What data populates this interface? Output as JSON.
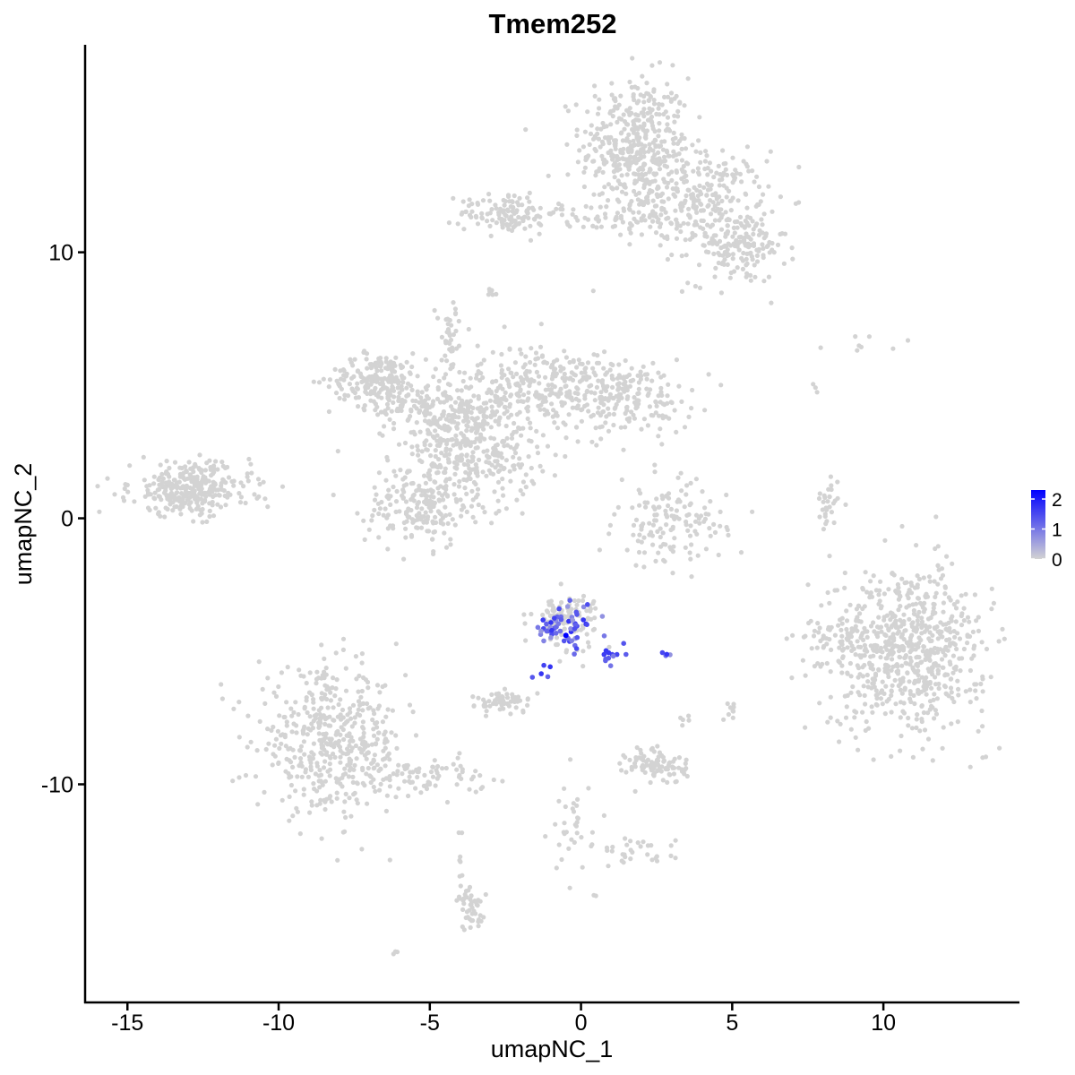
{
  "chart_data": {
    "type": "scatter",
    "title": "Tmem252",
    "xlabel": "umapNC_1",
    "ylabel": "umapNC_2",
    "xlim": [
      -16.4,
      14.5
    ],
    "ylim": [
      -18.2,
      17.8
    ],
    "x_ticks": [
      -15,
      -10,
      -5,
      0,
      5,
      10
    ],
    "x_tick_labels": [
      "-15",
      "-10",
      "-5",
      "0",
      "5",
      "10"
    ],
    "y_ticks": [
      -10,
      0,
      10
    ],
    "y_tick_labels": [
      "-10",
      "0",
      "10"
    ],
    "grid": false,
    "point_color_low": "#d3d3d3",
    "point_color_high": "#0000ff",
    "legend": {
      "position": "right",
      "type": "colorbar",
      "min": 0,
      "max": 2.3,
      "tick_values": [
        0,
        1,
        2
      ],
      "tick_labels": [
        "0",
        "1",
        "2"
      ]
    },
    "clusters": [
      {
        "center": [
          1.8,
          14.0
        ],
        "spread": [
          0.9,
          1.3
        ],
        "count": 420,
        "expr": 0
      },
      {
        "center": [
          3.9,
          12.0
        ],
        "spread": [
          1.1,
          0.9
        ],
        "count": 260,
        "expr": 0
      },
      {
        "center": [
          5.2,
          10.2
        ],
        "spread": [
          0.8,
          0.7
        ],
        "count": 160,
        "expr": 0
      },
      {
        "center": [
          -2.4,
          11.5
        ],
        "spread": [
          0.8,
          0.4
        ],
        "count": 120,
        "expr": 0
      },
      {
        "center": [
          0.8,
          11.2
        ],
        "spread": [
          1.3,
          0.3
        ],
        "count": 60,
        "expr": 0
      },
      {
        "center": [
          -3.0,
          8.5
        ],
        "spread": [
          0.15,
          0.15
        ],
        "count": 6,
        "expr": 0
      },
      {
        "center": [
          -6.7,
          5.2
        ],
        "spread": [
          0.8,
          0.5
        ],
        "count": 200,
        "expr": 0
      },
      {
        "center": [
          -4.5,
          4.0
        ],
        "spread": [
          1.1,
          0.7
        ],
        "count": 260,
        "expr": 0
      },
      {
        "center": [
          -3.4,
          2.4
        ],
        "spread": [
          1.0,
          0.9
        ],
        "count": 260,
        "expr": 0
      },
      {
        "center": [
          -1.4,
          5.0
        ],
        "spread": [
          1.0,
          0.8
        ],
        "count": 220,
        "expr": 0
      },
      {
        "center": [
          1.3,
          4.6
        ],
        "spread": [
          1.2,
          0.7
        ],
        "count": 220,
        "expr": 0
      },
      {
        "center": [
          -5.3,
          0.5
        ],
        "spread": [
          0.9,
          0.8
        ],
        "count": 200,
        "expr": 0
      },
      {
        "center": [
          -4.3,
          6.7
        ],
        "spread": [
          0.25,
          0.7
        ],
        "count": 40,
        "expr": 0
      },
      {
        "center": [
          -12.9,
          1.1
        ],
        "spread": [
          1.0,
          0.5
        ],
        "count": 320,
        "expr": 0
      },
      {
        "center": [
          -8.3,
          -8.4
        ],
        "spread": [
          1.2,
          1.3
        ],
        "count": 460,
        "expr": 0
      },
      {
        "center": [
          -5.2,
          -9.7
        ],
        "spread": [
          1.0,
          0.35
        ],
        "count": 90,
        "expr": 0
      },
      {
        "center": [
          -0.5,
          -3.8
        ],
        "spread": [
          0.55,
          0.5
        ],
        "count": 110,
        "expr": 0
      },
      {
        "center": [
          -0.5,
          -4.1
        ],
        "spread": [
          0.55,
          0.4
        ],
        "count": 55,
        "expr": 1
      },
      {
        "center": [
          0.9,
          -5.0
        ],
        "spread": [
          0.3,
          0.3
        ],
        "count": 12,
        "expr": 1
      },
      {
        "center": [
          -1.3,
          -5.6
        ],
        "spread": [
          0.15,
          0.3
        ],
        "count": 5,
        "expr": 1
      },
      {
        "center": [
          2.8,
          -5.1
        ],
        "spread": [
          0.1,
          0.05
        ],
        "count": 4,
        "expr": 1
      },
      {
        "center": [
          -2.5,
          -6.9
        ],
        "spread": [
          0.5,
          0.2
        ],
        "count": 60,
        "expr": 0
      },
      {
        "center": [
          2.5,
          -9.3
        ],
        "spread": [
          0.5,
          0.35
        ],
        "count": 90,
        "expr": 0
      },
      {
        "center": [
          3.4,
          -7.6
        ],
        "spread": [
          0.1,
          0.1
        ],
        "count": 5,
        "expr": 0
      },
      {
        "center": [
          5.0,
          -7.2
        ],
        "spread": [
          0.08,
          0.25
        ],
        "count": 10,
        "expr": 0
      },
      {
        "center": [
          -0.3,
          -11.5
        ],
        "spread": [
          0.35,
          0.9
        ],
        "count": 35,
        "expr": 0
      },
      {
        "center": [
          1.9,
          -12.6
        ],
        "spread": [
          0.6,
          0.3
        ],
        "count": 30,
        "expr": 0
      },
      {
        "center": [
          -3.6,
          -14.7
        ],
        "spread": [
          0.25,
          0.4
        ],
        "count": 45,
        "expr": 0
      },
      {
        "center": [
          -4.0,
          -13.6
        ],
        "spread": [
          0.12,
          0.4
        ],
        "count": 8,
        "expr": 0
      },
      {
        "center": [
          -6.1,
          -16.3
        ],
        "spread": [
          0.1,
          0.05
        ],
        "count": 3,
        "expr": 0
      },
      {
        "center": [
          0.5,
          -14.2
        ],
        "spread": [
          0.05,
          0.05
        ],
        "count": 2,
        "expr": 0
      },
      {
        "center": [
          -4.0,
          -11.8
        ],
        "spread": [
          0.05,
          0.05
        ],
        "count": 2,
        "expr": 0
      },
      {
        "center": [
          3.0,
          -0.2
        ],
        "spread": [
          0.9,
          0.8
        ],
        "count": 140,
        "expr": 0
      },
      {
        "center": [
          8.1,
          0.3
        ],
        "spread": [
          0.2,
          0.6
        ],
        "count": 30,
        "expr": 0
      },
      {
        "center": [
          10.8,
          -4.9
        ],
        "spread": [
          1.3,
          1.5
        ],
        "count": 700,
        "expr": 0
      },
      {
        "center": [
          8.3,
          -4.5
        ],
        "spread": [
          0.45,
          0.45
        ],
        "count": 40,
        "expr": 0
      },
      {
        "center": [
          8.9,
          6.5
        ],
        "spread": [
          0.9,
          0.3
        ],
        "count": 8,
        "expr": 0
      },
      {
        "center": [
          7.6,
          4.8
        ],
        "spread": [
          0.1,
          0.1
        ],
        "count": 3,
        "expr": 0
      }
    ]
  }
}
